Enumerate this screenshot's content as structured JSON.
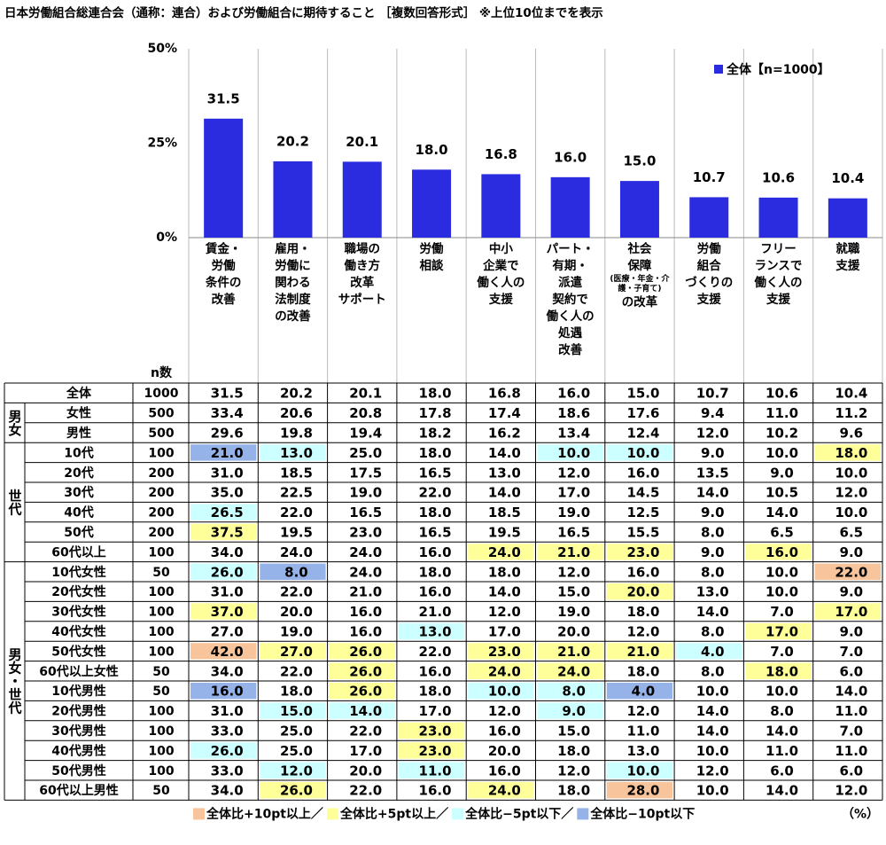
{
  "chart_data": {
    "type": "bar",
    "title": "日本労働組合総連合会（通称：連合）および労働組合に期待すること ［複数回答形式］ ※上位10位までを表示",
    "categories": [
      "賃金・\n労働\n条件の\n改善",
      "雇用・\n労働に\n関わる\n法制度\nの改善",
      "職場の\n働き方\n改革\nサポート",
      "労働\n相談",
      "中小\n企業で\n働く人の\n支援",
      "パート・\n有期・\n派遣\n契約で\n働く人の\n処遇\n改善",
      "社会\n保障\n(医療・年金・介護・子育て)\nの改革",
      "労働\n組合\nづくりの\n支援",
      "フリー\nランスで\n働く人の\n支援",
      "就職\n支援"
    ],
    "series": [
      {
        "name": "全体【n=1000】",
        "color": "#2b2be0",
        "values": [
          31.5,
          20.2,
          20.1,
          18.0,
          16.8,
          16.0,
          15.0,
          10.7,
          10.6,
          10.4
        ],
        "value_labels": [
          "31.5",
          "20.2",
          "20.1",
          "18.0",
          "16.8",
          "16.0",
          "15.0",
          "10.7",
          "10.6",
          "10.4"
        ]
      }
    ],
    "ylim": [
      0,
      50
    ],
    "yticks": [
      {
        "value": 0,
        "label": "0%"
      },
      {
        "value": 25,
        "label": "25%"
      },
      {
        "value": 50,
        "label": "50%"
      }
    ],
    "legend": "top-right"
  },
  "table": {
    "n_header": "n数",
    "unit": "（%）",
    "legend": [
      {
        "label": "全体比+10pt以上／",
        "color": "#f8c49c"
      },
      {
        "label": "全体比+5pt以上／",
        "color": "#ffff99"
      },
      {
        "label": "全体比−5pt以下／",
        "color": "#ccffff"
      },
      {
        "label": "全体比−10pt以下",
        "color": "#95b3e8"
      }
    ],
    "sections": [
      {
        "rows": [
          {
            "label": "全体",
            "n": "1000",
            "cells": [
              "31.5",
              "20.2",
              "20.1",
              "18.0",
              "16.8",
              "16.0",
              "15.0",
              "10.7",
              "10.6",
              "10.4"
            ]
          }
        ]
      },
      {
        "label": "男女",
        "rows": [
          {
            "label": "女性",
            "n": "500",
            "cells": [
              "33.4",
              "20.6",
              "20.8",
              "17.8",
              "17.4",
              "18.6",
              "17.6",
              "9.4",
              "11.0",
              "11.2"
            ]
          },
          {
            "label": "男性",
            "n": "500",
            "cells": [
              "29.6",
              "19.8",
              "19.4",
              "18.2",
              "16.2",
              "13.4",
              "12.4",
              "12.0",
              "10.2",
              "9.6"
            ]
          }
        ]
      },
      {
        "label": "世代",
        "rows": [
          {
            "label": "10代",
            "n": "100",
            "cells": [
              "21.0",
              "13.0",
              "25.0",
              "18.0",
              "14.0",
              "10.0",
              "10.0",
              "9.0",
              "10.0",
              "18.0"
            ],
            "colors": [
              "#95b3e8",
              "#ccffff",
              null,
              null,
              null,
              "#ccffff",
              "#ccffff",
              null,
              null,
              "#ffff99"
            ]
          },
          {
            "label": "20代",
            "n": "200",
            "cells": [
              "31.0",
              "18.5",
              "17.5",
              "16.5",
              "13.0",
              "12.0",
              "16.0",
              "13.5",
              "9.0",
              "10.0"
            ]
          },
          {
            "label": "30代",
            "n": "200",
            "cells": [
              "35.0",
              "22.5",
              "19.0",
              "22.0",
              "14.0",
              "17.0",
              "14.5",
              "14.0",
              "10.5",
              "12.0"
            ]
          },
          {
            "label": "40代",
            "n": "200",
            "cells": [
              "26.5",
              "22.0",
              "16.5",
              "18.0",
              "18.5",
              "19.0",
              "12.5",
              "9.0",
              "14.0",
              "10.0"
            ],
            "colors": [
              "#ccffff",
              null,
              null,
              null,
              null,
              null,
              null,
              null,
              null,
              null
            ]
          },
          {
            "label": "50代",
            "n": "200",
            "cells": [
              "37.5",
              "19.5",
              "23.0",
              "16.5",
              "19.5",
              "16.5",
              "15.5",
              "8.0",
              "6.5",
              "6.5"
            ],
            "colors": [
              "#ffff99",
              null,
              null,
              null,
              null,
              null,
              null,
              null,
              null,
              null
            ]
          },
          {
            "label": "60代以上",
            "n": "100",
            "cells": [
              "34.0",
              "24.0",
              "24.0",
              "16.0",
              "24.0",
              "21.0",
              "23.0",
              "9.0",
              "16.0",
              "9.0"
            ],
            "colors": [
              null,
              null,
              null,
              null,
              "#ffff99",
              "#ffff99",
              "#ffff99",
              null,
              "#ffff99",
              null
            ]
          }
        ]
      },
      {
        "label": "男女・世代",
        "rows": [
          {
            "label": "10代女性",
            "n": "50",
            "cells": [
              "26.0",
              "8.0",
              "24.0",
              "18.0",
              "18.0",
              "12.0",
              "16.0",
              "8.0",
              "10.0",
              "22.0"
            ],
            "colors": [
              "#ccffff",
              "#95b3e8",
              null,
              null,
              null,
              null,
              null,
              null,
              null,
              "#f8c49c"
            ]
          },
          {
            "label": "20代女性",
            "n": "100",
            "cells": [
              "31.0",
              "22.0",
              "21.0",
              "16.0",
              "14.0",
              "15.0",
              "20.0",
              "13.0",
              "10.0",
              "9.0"
            ],
            "colors": [
              null,
              null,
              null,
              null,
              null,
              null,
              "#ffff99",
              null,
              null,
              null
            ]
          },
          {
            "label": "30代女性",
            "n": "100",
            "cells": [
              "37.0",
              "20.0",
              "16.0",
              "21.0",
              "12.0",
              "19.0",
              "18.0",
              "14.0",
              "7.0",
              "17.0"
            ],
            "colors": [
              "#ffff99",
              null,
              null,
              null,
              null,
              null,
              null,
              null,
              null,
              "#ffff99"
            ]
          },
          {
            "label": "40代女性",
            "n": "100",
            "cells": [
              "27.0",
              "19.0",
              "16.0",
              "13.0",
              "17.0",
              "20.0",
              "12.0",
              "8.0",
              "17.0",
              "9.0"
            ],
            "colors": [
              null,
              null,
              null,
              "#ccffff",
              null,
              null,
              null,
              null,
              "#ffff99",
              null
            ]
          },
          {
            "label": "50代女性",
            "n": "100",
            "cells": [
              "42.0",
              "27.0",
              "26.0",
              "22.0",
              "23.0",
              "21.0",
              "21.0",
              "4.0",
              "7.0",
              "7.0"
            ],
            "colors": [
              "#f8c49c",
              "#ffff99",
              "#ffff99",
              null,
              "#ffff99",
              "#ffff99",
              "#ffff99",
              "#ccffff",
              null,
              null
            ]
          },
          {
            "label": "60代以上女性",
            "n": "50",
            "cells": [
              "34.0",
              "22.0",
              "26.0",
              "16.0",
              "24.0",
              "24.0",
              "18.0",
              "8.0",
              "18.0",
              "6.0"
            ],
            "colors": [
              null,
              null,
              "#ffff99",
              null,
              "#ffff99",
              "#ffff99",
              null,
              null,
              "#ffff99",
              null
            ]
          },
          {
            "label": "10代男性",
            "n": "50",
            "cells": [
              "16.0",
              "18.0",
              "26.0",
              "18.0",
              "10.0",
              "8.0",
              "4.0",
              "10.0",
              "10.0",
              "14.0"
            ],
            "colors": [
              "#95b3e8",
              null,
              "#ffff99",
              null,
              "#ccffff",
              "#ccffff",
              "#95b3e8",
              null,
              null,
              null
            ]
          },
          {
            "label": "20代男性",
            "n": "100",
            "cells": [
              "31.0",
              "15.0",
              "14.0",
              "17.0",
              "12.0",
              "9.0",
              "12.0",
              "14.0",
              "8.0",
              "11.0"
            ],
            "colors": [
              null,
              "#ccffff",
              "#ccffff",
              null,
              null,
              "#ccffff",
              null,
              null,
              null,
              null
            ]
          },
          {
            "label": "30代男性",
            "n": "100",
            "cells": [
              "33.0",
              "25.0",
              "22.0",
              "23.0",
              "16.0",
              "15.0",
              "11.0",
              "14.0",
              "14.0",
              "7.0"
            ],
            "colors": [
              null,
              null,
              null,
              "#ffff99",
              null,
              null,
              null,
              null,
              null,
              null
            ]
          },
          {
            "label": "40代男性",
            "n": "100",
            "cells": [
              "26.0",
              "25.0",
              "17.0",
              "23.0",
              "20.0",
              "18.0",
              "13.0",
              "10.0",
              "11.0",
              "11.0"
            ],
            "colors": [
              "#ccffff",
              null,
              null,
              "#ffff99",
              null,
              null,
              null,
              null,
              null,
              null
            ]
          },
          {
            "label": "50代男性",
            "n": "100",
            "cells": [
              "33.0",
              "12.0",
              "20.0",
              "11.0",
              "16.0",
              "12.0",
              "10.0",
              "12.0",
              "6.0",
              "6.0"
            ],
            "colors": [
              null,
              "#ccffff",
              null,
              "#ccffff",
              null,
              null,
              "#ccffff",
              null,
              null,
              null
            ]
          },
          {
            "label": "60代以上男性",
            "n": "50",
            "cells": [
              "34.0",
              "26.0",
              "22.0",
              "16.0",
              "24.0",
              "18.0",
              "28.0",
              "10.0",
              "14.0",
              "12.0"
            ],
            "colors": [
              null,
              "#ffff99",
              null,
              null,
              "#ffff99",
              null,
              "#f8c49c",
              null,
              null,
              null
            ]
          }
        ]
      }
    ]
  }
}
